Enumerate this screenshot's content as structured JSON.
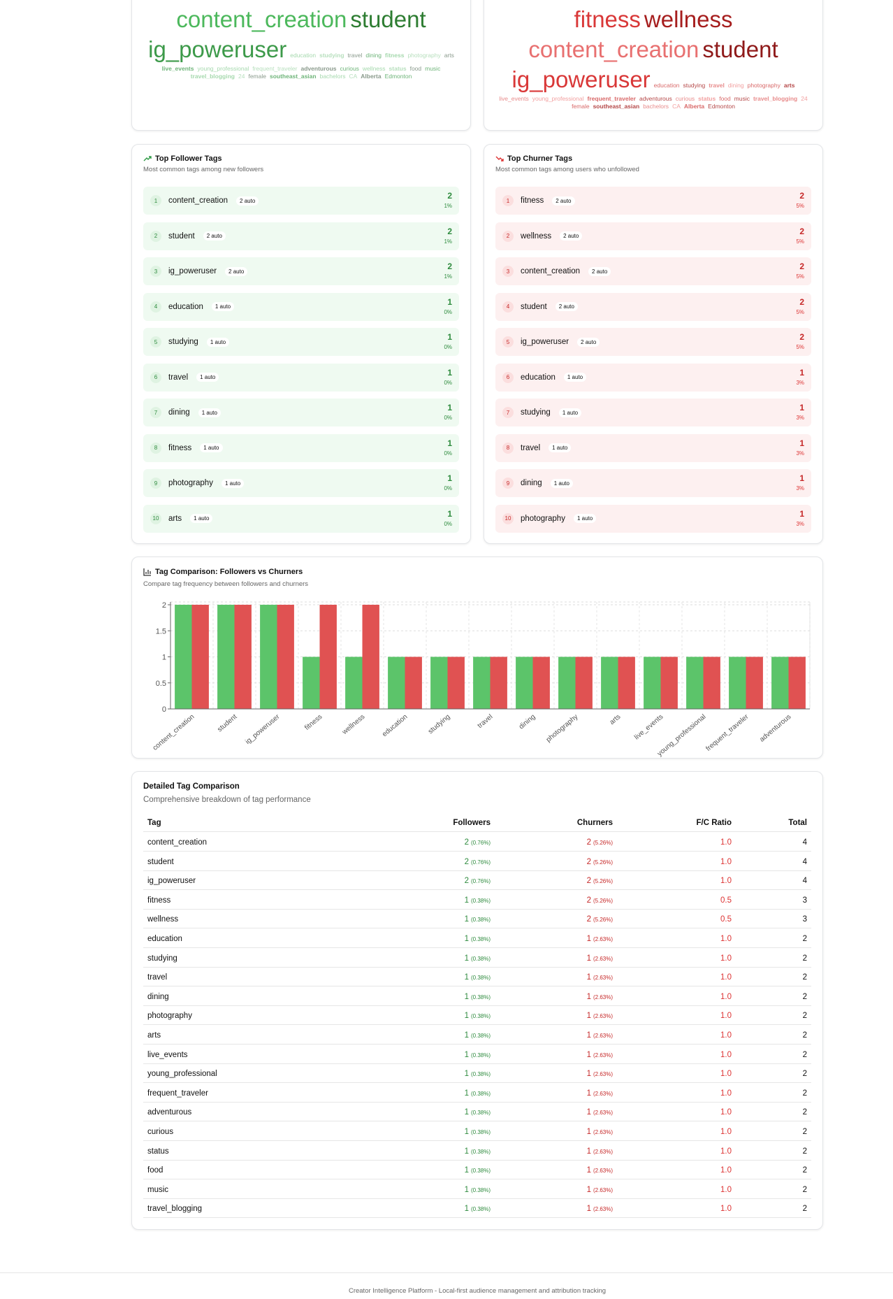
{
  "word_clouds": {
    "followers": [
      "content_creation",
      "student",
      "ig_poweruser",
      "education",
      "studying",
      "travel",
      "dining",
      "fitness",
      "photography",
      "arts",
      "live_events",
      "young_professional",
      "frequent_traveler",
      "adventurous",
      "curious",
      "wellness",
      "status",
      "food",
      "music",
      "travel_blogging",
      "24",
      "female",
      "southeast_asian",
      "bachelors",
      "CA",
      "Alberta",
      "Edmonton"
    ],
    "churners": [
      "fitness",
      "wellness",
      "content_creation",
      "student",
      "ig_poweruser",
      "education",
      "studying",
      "travel",
      "dining",
      "photography",
      "arts",
      "live_events",
      "young_professional",
      "frequent_traveler",
      "adventurous",
      "curious",
      "status",
      "food",
      "music",
      "travel_blogging",
      "24",
      "female",
      "southeast_asian",
      "bachelors",
      "CA",
      "Alberta",
      "Edmonton"
    ]
  },
  "follower_tags": {
    "title": "Top Follower Tags",
    "subtitle": "Most common tags among new followers",
    "items": [
      {
        "rank": 1,
        "tag": "content_creation",
        "badge": "2 auto",
        "count": 2,
        "percent": "1%"
      },
      {
        "rank": 2,
        "tag": "student",
        "badge": "2 auto",
        "count": 2,
        "percent": "1%"
      },
      {
        "rank": 3,
        "tag": "ig_poweruser",
        "badge": "2 auto",
        "count": 2,
        "percent": "1%"
      },
      {
        "rank": 4,
        "tag": "education",
        "badge": "1 auto",
        "count": 1,
        "percent": "0%"
      },
      {
        "rank": 5,
        "tag": "studying",
        "badge": "1 auto",
        "count": 1,
        "percent": "0%"
      },
      {
        "rank": 6,
        "tag": "travel",
        "badge": "1 auto",
        "count": 1,
        "percent": "0%"
      },
      {
        "rank": 7,
        "tag": "dining",
        "badge": "1 auto",
        "count": 1,
        "percent": "0%"
      },
      {
        "rank": 8,
        "tag": "fitness",
        "badge": "1 auto",
        "count": 1,
        "percent": "0%"
      },
      {
        "rank": 9,
        "tag": "photography",
        "badge": "1 auto",
        "count": 1,
        "percent": "0%"
      },
      {
        "rank": 10,
        "tag": "arts",
        "badge": "1 auto",
        "count": 1,
        "percent": "0%"
      }
    ]
  },
  "churner_tags": {
    "title": "Top Churner Tags",
    "subtitle": "Most common tags among users who unfollowed",
    "items": [
      {
        "rank": 1,
        "tag": "fitness",
        "badge": "2 auto",
        "count": 2,
        "percent": "5%"
      },
      {
        "rank": 2,
        "tag": "wellness",
        "badge": "2 auto",
        "count": 2,
        "percent": "5%"
      },
      {
        "rank": 3,
        "tag": "content_creation",
        "badge": "2 auto",
        "count": 2,
        "percent": "5%"
      },
      {
        "rank": 4,
        "tag": "student",
        "badge": "2 auto",
        "count": 2,
        "percent": "5%"
      },
      {
        "rank": 5,
        "tag": "ig_poweruser",
        "badge": "2 auto",
        "count": 2,
        "percent": "5%"
      },
      {
        "rank": 6,
        "tag": "education",
        "badge": "1 auto",
        "count": 1,
        "percent": "3%"
      },
      {
        "rank": 7,
        "tag": "studying",
        "badge": "1 auto",
        "count": 1,
        "percent": "3%"
      },
      {
        "rank": 8,
        "tag": "travel",
        "badge": "1 auto",
        "count": 1,
        "percent": "3%"
      },
      {
        "rank": 9,
        "tag": "dining",
        "badge": "1 auto",
        "count": 1,
        "percent": "3%"
      },
      {
        "rank": 10,
        "tag": "photography",
        "badge": "1 auto",
        "count": 1,
        "percent": "3%"
      }
    ]
  },
  "chart_data": {
    "type": "bar",
    "title": "Tag Comparison: Followers vs Churners",
    "subtitle": "Compare tag frequency between followers and churners",
    "categories": [
      "content_creation",
      "student",
      "ig_poweruser",
      "fitness",
      "wellness",
      "education",
      "studying",
      "travel",
      "dining",
      "photography",
      "arts",
      "live_events",
      "young_professional",
      "frequent_traveler",
      "adventurous"
    ],
    "series": [
      {
        "color": "#5cc46a",
        "values": [
          2,
          2,
          2,
          1,
          1,
          1,
          1,
          1,
          1,
          1,
          1,
          1,
          1,
          1,
          1
        ]
      },
      {
        "color": "#e05252",
        "values": [
          2,
          2,
          2,
          2,
          2,
          1,
          1,
          1,
          1,
          1,
          1,
          1,
          1,
          1,
          1
        ]
      }
    ],
    "ylim": [
      0,
      2
    ],
    "yticks": [
      0,
      0.5,
      1,
      1.5,
      2
    ],
    "grid": true
  },
  "table": {
    "title": "Detailed Tag Comparison",
    "subtitle": "Comprehensive breakdown of tag performance",
    "headers": [
      "Tag",
      "Followers",
      "Churners",
      "F/C Ratio",
      "Total"
    ],
    "rows": [
      [
        "content_creation",
        2,
        "(0.76%)",
        2,
        "(5.26%)",
        "1.0",
        4
      ],
      [
        "student",
        2,
        "(0.76%)",
        2,
        "(5.26%)",
        "1.0",
        4
      ],
      [
        "ig_poweruser",
        2,
        "(0.76%)",
        2,
        "(5.26%)",
        "1.0",
        4
      ],
      [
        "fitness",
        1,
        "(0.38%)",
        2,
        "(5.26%)",
        "0.5",
        3
      ],
      [
        "wellness",
        1,
        "(0.38%)",
        2,
        "(5.26%)",
        "0.5",
        3
      ],
      [
        "education",
        1,
        "(0.38%)",
        1,
        "(2.63%)",
        "1.0",
        2
      ],
      [
        "studying",
        1,
        "(0.38%)",
        1,
        "(2.63%)",
        "1.0",
        2
      ],
      [
        "travel",
        1,
        "(0.38%)",
        1,
        "(2.63%)",
        "1.0",
        2
      ],
      [
        "dining",
        1,
        "(0.38%)",
        1,
        "(2.63%)",
        "1.0",
        2
      ],
      [
        "photography",
        1,
        "(0.38%)",
        1,
        "(2.63%)",
        "1.0",
        2
      ],
      [
        "arts",
        1,
        "(0.38%)",
        1,
        "(2.63%)",
        "1.0",
        2
      ],
      [
        "live_events",
        1,
        "(0.38%)",
        1,
        "(2.63%)",
        "1.0",
        2
      ],
      [
        "young_professional",
        1,
        "(0.38%)",
        1,
        "(2.63%)",
        "1.0",
        2
      ],
      [
        "frequent_traveler",
        1,
        "(0.38%)",
        1,
        "(2.63%)",
        "1.0",
        2
      ],
      [
        "adventurous",
        1,
        "(0.38%)",
        1,
        "(2.63%)",
        "1.0",
        2
      ],
      [
        "curious",
        1,
        "(0.38%)",
        1,
        "(2.63%)",
        "1.0",
        2
      ],
      [
        "status",
        1,
        "(0.38%)",
        1,
        "(2.63%)",
        "1.0",
        2
      ],
      [
        "food",
        1,
        "(0.38%)",
        1,
        "(2.63%)",
        "1.0",
        2
      ],
      [
        "music",
        1,
        "(0.38%)",
        1,
        "(2.63%)",
        "1.0",
        2
      ],
      [
        "travel_blogging",
        1,
        "(0.38%)",
        1,
        "(2.63%)",
        "1.0",
        2
      ]
    ]
  },
  "footer": "Creator Intelligence Platform - Local-first audience management and attribution tracking"
}
